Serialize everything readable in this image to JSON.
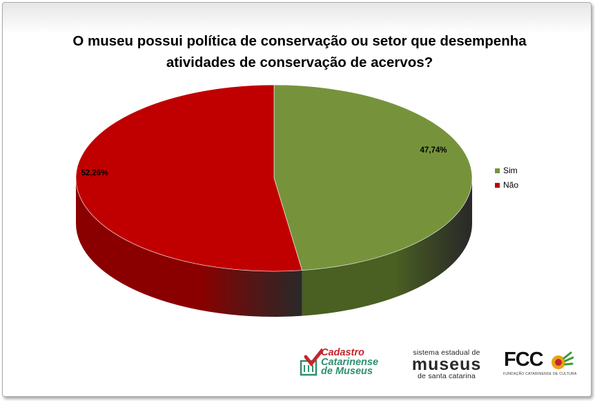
{
  "chart_data": {
    "type": "pie",
    "title": "O museu possui política de conservação ou setor que desempenha atividades de conservação de acervos?",
    "title_lines": [
      "O museu possui política de conservação ou setor que desempenha",
      "atividades de conservação de acervos?"
    ],
    "three_d": true,
    "slices": [
      {
        "label": "Sim",
        "value": 47.74,
        "data_label": "47,74%",
        "color": "#76933c",
        "side_color": "#4a5f22"
      },
      {
        "label": "Não",
        "value": 52.26,
        "data_label": "52,26%",
        "color": "#c00000",
        "side_color": "#8a0000"
      }
    ],
    "legend": {
      "placement": "right",
      "entries": [
        "Sim",
        "Não"
      ]
    }
  },
  "logos": {
    "cadastro": {
      "lines": [
        "Cadastro",
        "Catarinense",
        "de Museus"
      ]
    },
    "sistema": {
      "line1": "sistema estadual de",
      "line2": "museus",
      "line3": "de santa catarina"
    },
    "fcc": {
      "text": "FCC",
      "sub": "FUNDAÇÃO CATARINENSE DE CULTURA"
    }
  }
}
